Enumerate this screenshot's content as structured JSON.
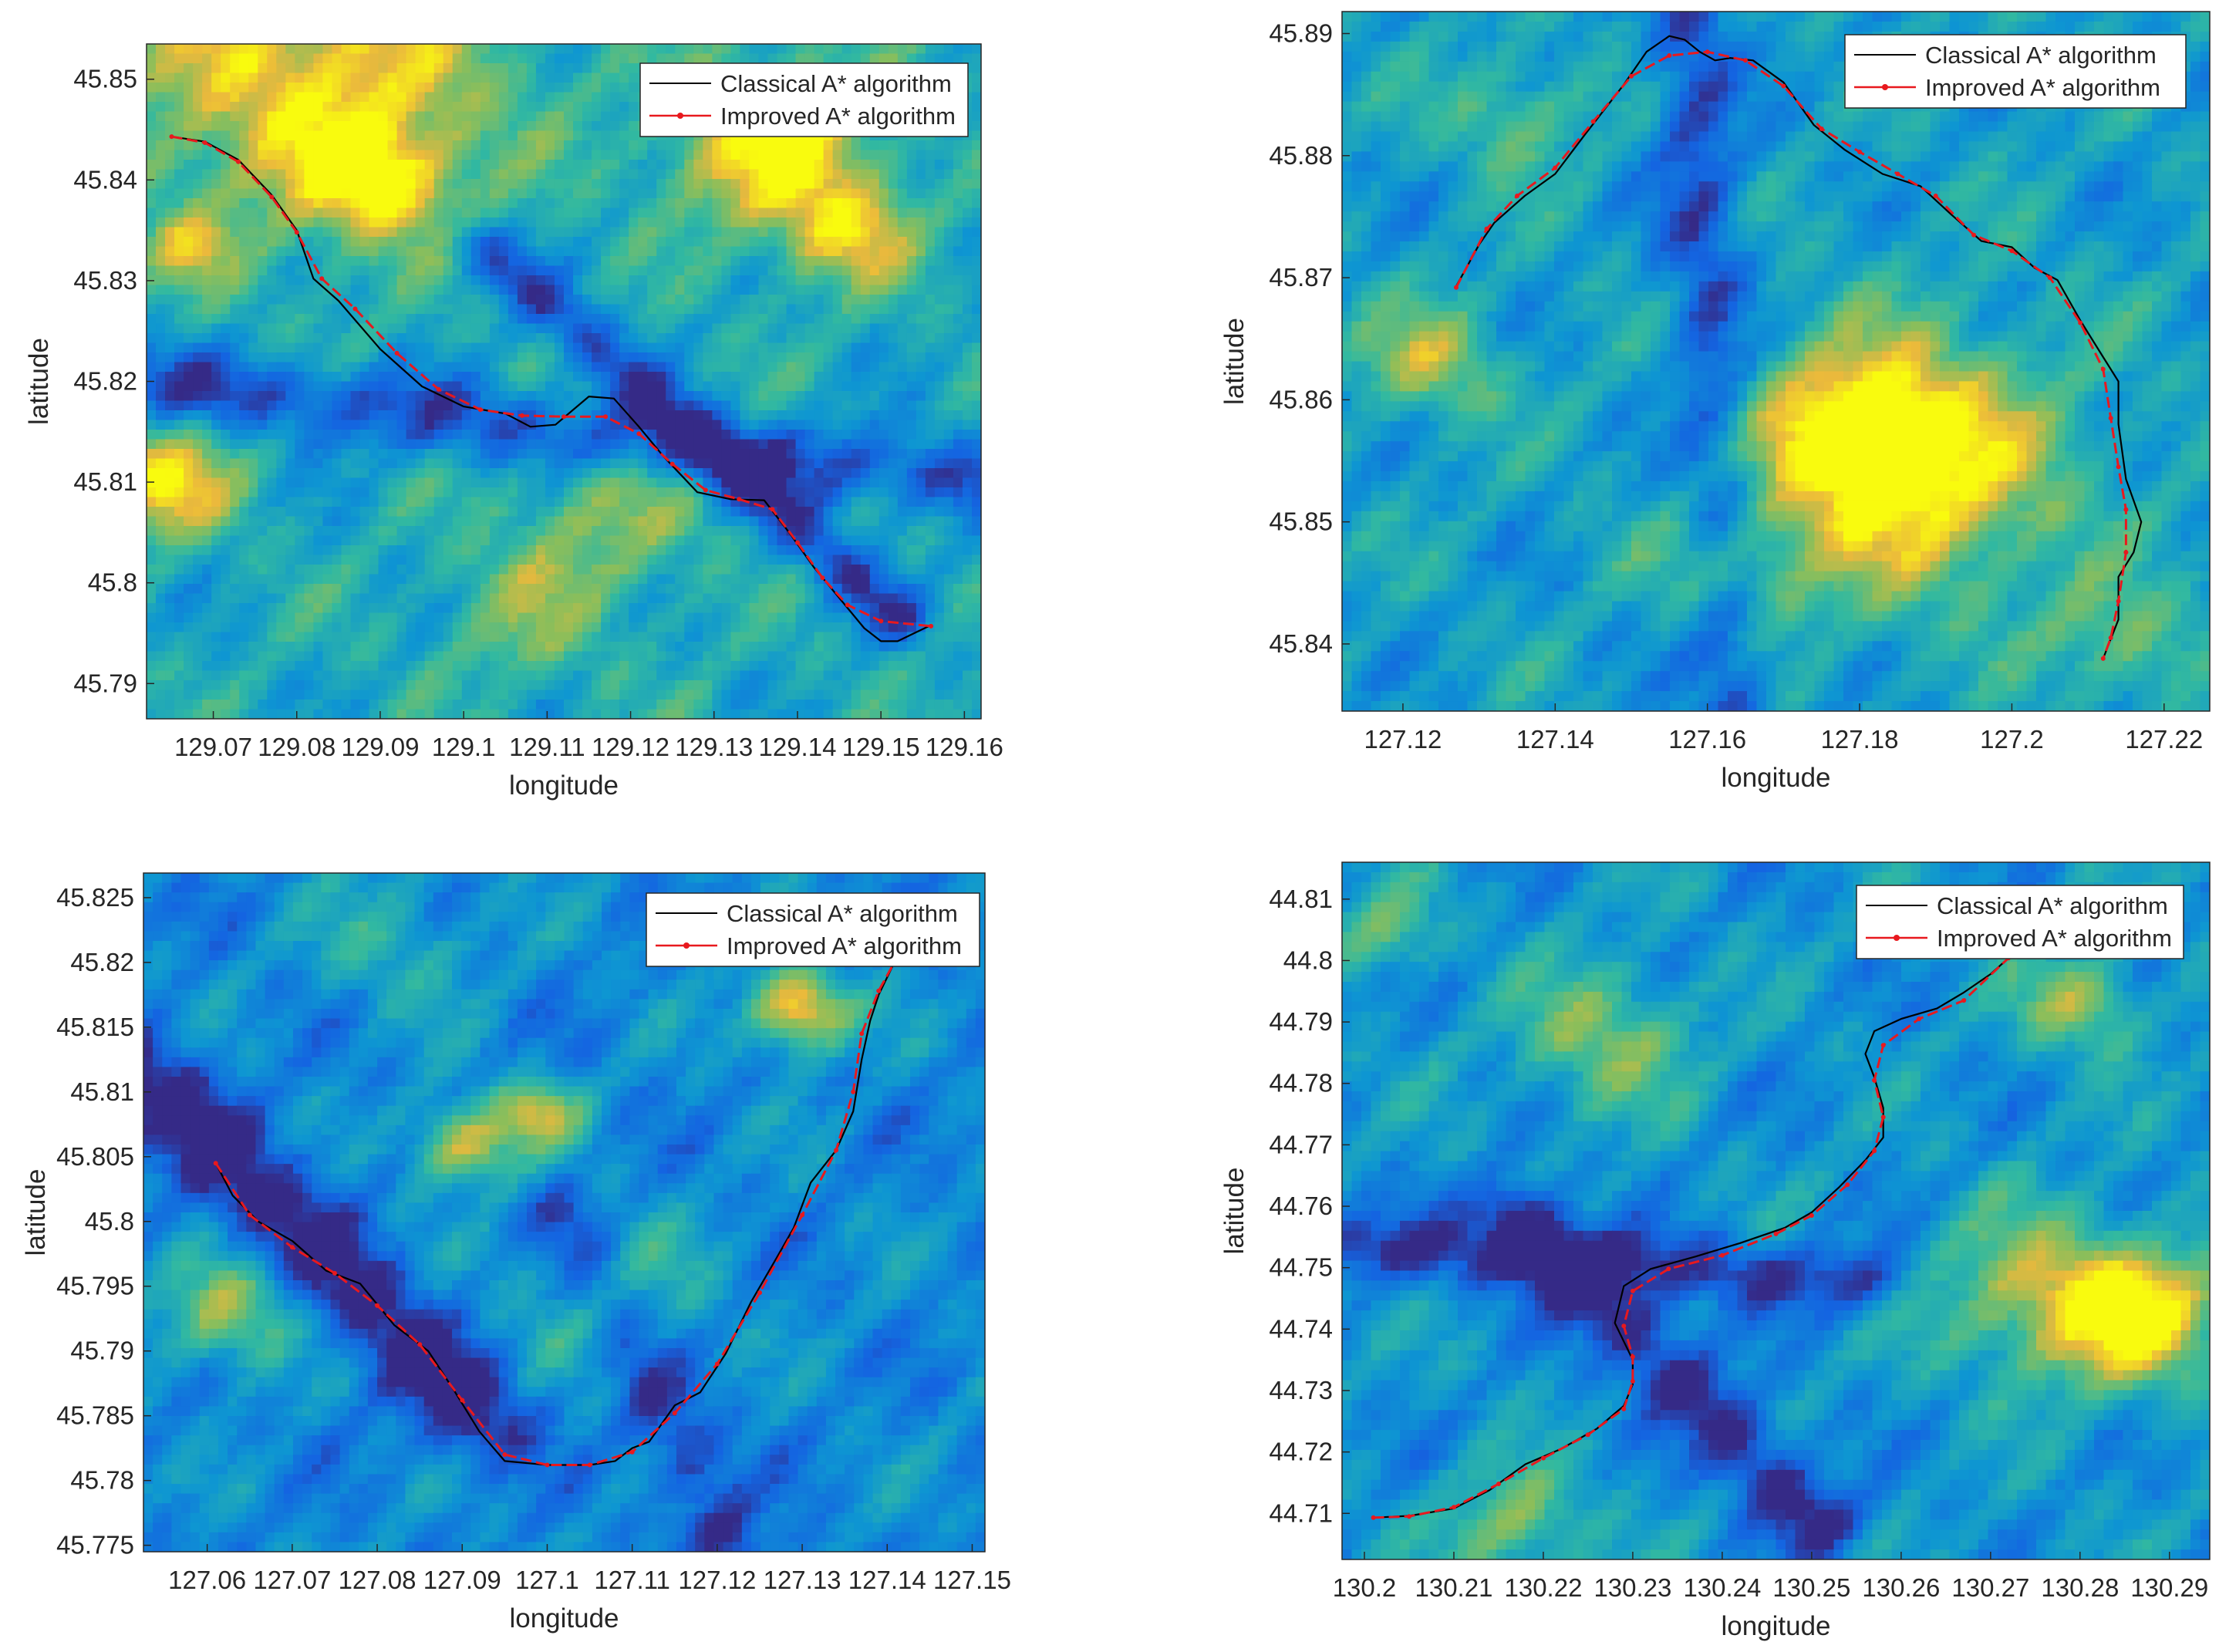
{
  "chart_data": [
    {
      "type": "line",
      "background": "terrain-heatmap",
      "xlabel": "longitude",
      "ylabel": "latitude",
      "xlim": [
        129.062,
        129.162
      ],
      "ylim": [
        45.7865,
        45.8535
      ],
      "xticks": [
        129.07,
        129.08,
        129.09,
        129.1,
        129.11,
        129.12,
        129.13,
        129.14,
        129.15,
        129.16
      ],
      "yticks": [
        45.79,
        45.8,
        45.81,
        45.82,
        45.83,
        45.84,
        45.85
      ],
      "grid": false,
      "legend_position": "top-right",
      "series": [
        {
          "name": "Classical A* algorithm",
          "color": "#000000",
          "points": [
            [
              129.065,
              45.8443
            ],
            [
              129.069,
              45.8438
            ],
            [
              129.073,
              45.842
            ],
            [
              129.077,
              45.8385
            ],
            [
              129.08,
              45.835
            ],
            [
              129.082,
              45.8302
            ],
            [
              129.085,
              45.828
            ],
            [
              129.09,
              45.8232
            ],
            [
              129.095,
              45.8195
            ],
            [
              129.1,
              45.8175
            ],
            [
              129.105,
              45.8168
            ],
            [
              129.108,
              45.8155
            ],
            [
              129.111,
              45.8157
            ],
            [
              129.115,
              45.8185
            ],
            [
              129.118,
              45.8183
            ],
            [
              129.121,
              45.8155
            ],
            [
              129.124,
              45.8125
            ],
            [
              129.128,
              45.809
            ],
            [
              129.132,
              45.8083
            ],
            [
              129.136,
              45.8082
            ],
            [
              129.139,
              45.805
            ],
            [
              129.142,
              45.8015
            ],
            [
              129.145,
              45.7985
            ],
            [
              129.148,
              45.7955
            ],
            [
              129.15,
              45.7942
            ],
            [
              129.152,
              45.7942
            ],
            [
              129.156,
              45.7958
            ]
          ]
        },
        {
          "name": "Improved A* algorithm",
          "color": "#e8191e",
          "points": [
            [
              129.065,
              45.8443
            ],
            [
              129.069,
              45.8437
            ],
            [
              129.073,
              45.8418
            ],
            [
              129.077,
              45.8383
            ],
            [
              129.08,
              45.8348
            ],
            [
              129.083,
              45.8302
            ],
            [
              129.087,
              45.8272
            ],
            [
              129.092,
              45.8228
            ],
            [
              129.097,
              45.8192
            ],
            [
              129.102,
              45.8172
            ],
            [
              129.107,
              45.8166
            ],
            [
              129.112,
              45.8165
            ],
            [
              129.117,
              45.8165
            ],
            [
              129.121,
              45.8148
            ],
            [
              129.125,
              45.8118
            ],
            [
              129.129,
              45.8092
            ],
            [
              129.133,
              45.8083
            ],
            [
              129.137,
              45.8073
            ],
            [
              129.14,
              45.804
            ],
            [
              129.143,
              45.8005
            ],
            [
              129.146,
              45.7978
            ],
            [
              129.15,
              45.7962
            ],
            [
              129.156,
              45.7957
            ]
          ]
        }
      ]
    },
    {
      "type": "line",
      "background": "terrain-heatmap",
      "xlabel": "longitude",
      "ylabel": "latitude",
      "xlim": [
        127.112,
        127.226
      ],
      "ylim": [
        45.8345,
        45.8918
      ],
      "xticks": [
        127.12,
        127.14,
        127.16,
        127.18,
        127.2,
        127.22
      ],
      "yticks": [
        45.84,
        45.85,
        45.86,
        45.87,
        45.88,
        45.89
      ],
      "grid": false,
      "legend_position": "top-right",
      "series": [
        {
          "name": "Classical A* algorithm",
          "color": "#000000",
          "points": [
            [
              127.127,
              45.8693
            ],
            [
              127.13,
              45.8727
            ],
            [
              127.132,
              45.8745
            ],
            [
              127.136,
              45.8767
            ],
            [
              127.14,
              45.8785
            ],
            [
              127.144,
              45.8818
            ],
            [
              127.149,
              45.8858
            ],
            [
              127.152,
              45.8885
            ],
            [
              127.155,
              45.8898
            ],
            [
              127.157,
              45.8895
            ],
            [
              127.159,
              45.8885
            ],
            [
              127.161,
              45.8878
            ],
            [
              127.163,
              45.888
            ],
            [
              127.166,
              45.8878
            ],
            [
              127.17,
              45.886
            ],
            [
              127.174,
              45.8825
            ],
            [
              127.178,
              45.8805
            ],
            [
              127.183,
              45.8785
            ],
            [
              127.188,
              45.8775
            ],
            [
              127.192,
              45.8752
            ],
            [
              127.196,
              45.873
            ],
            [
              127.2,
              45.8725
            ],
            [
              127.203,
              45.8708
            ],
            [
              127.206,
              45.8698
            ],
            [
              127.209,
              45.8665
            ],
            [
              127.212,
              45.8635
            ],
            [
              127.214,
              45.8615
            ],
            [
              127.214,
              45.858
            ],
            [
              127.215,
              45.8535
            ],
            [
              127.217,
              45.85
            ],
            [
              127.216,
              45.8475
            ],
            [
              127.214,
              45.8455
            ],
            [
              127.214,
              45.842
            ],
            [
              127.212,
              45.8388
            ]
          ]
        },
        {
          "name": "Improved A* algorithm",
          "color": "#e8191e",
          "points": [
            [
              127.127,
              45.8692
            ],
            [
              127.131,
              45.874
            ],
            [
              127.135,
              45.8767
            ],
            [
              127.14,
              45.879
            ],
            [
              127.145,
              45.8828
            ],
            [
              127.15,
              45.8865
            ],
            [
              127.155,
              45.8882
            ],
            [
              127.16,
              45.8885
            ],
            [
              127.165,
              45.8878
            ],
            [
              127.17,
              45.8857
            ],
            [
              127.175,
              45.8822
            ],
            [
              127.18,
              45.8803
            ],
            [
              127.185,
              45.8785
            ],
            [
              127.19,
              45.8767
            ],
            [
              127.195,
              45.8735
            ],
            [
              127.2,
              45.8722
            ],
            [
              127.205,
              45.87
            ],
            [
              127.209,
              45.8663
            ],
            [
              127.212,
              45.8625
            ],
            [
              127.213,
              45.8585
            ],
            [
              127.214,
              45.8545
            ],
            [
              127.215,
              45.851
            ],
            [
              127.215,
              45.8475
            ],
            [
              127.214,
              45.8435
            ],
            [
              127.213,
              45.8405
            ],
            [
              127.212,
              45.8388
            ]
          ]
        }
      ]
    },
    {
      "type": "line",
      "background": "terrain-heatmap",
      "xlabel": "longitude",
      "ylabel": "latitude",
      "xlim": [
        127.0525,
        127.1515
      ],
      "ylim": [
        45.7745,
        45.8269
      ],
      "xticks": [
        127.06,
        127.07,
        127.08,
        127.09,
        127.1,
        127.11,
        127.12,
        127.13,
        127.14,
        127.15
      ],
      "yticks": [
        45.775,
        45.78,
        45.785,
        45.79,
        45.795,
        45.8,
        45.805,
        45.81,
        45.815,
        45.82,
        45.825
      ],
      "grid": false,
      "legend_position": "top-right",
      "series": [
        {
          "name": "Classical A* algorithm",
          "color": "#000000",
          "points": [
            [
              127.061,
              45.8045
            ],
            [
              127.063,
              45.802
            ],
            [
              127.066,
              45.8
            ],
            [
              127.07,
              45.7985
            ],
            [
              127.074,
              45.7962
            ],
            [
              127.078,
              45.7952
            ],
            [
              127.082,
              45.792
            ],
            [
              127.086,
              45.79
            ],
            [
              127.089,
              45.787
            ],
            [
              127.092,
              45.7838
            ],
            [
              127.095,
              45.7815
            ],
            [
              127.1,
              45.7812
            ],
            [
              127.105,
              45.7812
            ],
            [
              127.108,
              45.7815
            ],
            [
              127.11,
              45.7825
            ],
            [
              127.112,
              45.783
            ],
            [
              127.115,
              45.7858
            ],
            [
              127.118,
              45.7868
            ],
            [
              127.121,
              45.7898
            ],
            [
              127.124,
              45.7938
            ],
            [
              127.127,
              45.7972
            ],
            [
              127.129,
              45.7995
            ],
            [
              127.131,
              45.803
            ],
            [
              127.134,
              45.8055
            ],
            [
              127.136,
              45.8085
            ],
            [
              127.137,
              45.8125
            ],
            [
              127.138,
              45.8155
            ],
            [
              127.139,
              45.8175
            ],
            [
              127.141,
              45.8202
            ]
          ]
        },
        {
          "name": "Improved A* algorithm",
          "color": "#e8191e",
          "points": [
            [
              127.061,
              45.8045
            ],
            [
              127.065,
              45.8005
            ],
            [
              127.07,
              45.798
            ],
            [
              127.075,
              45.796
            ],
            [
              127.08,
              45.7935
            ],
            [
              127.085,
              45.7905
            ],
            [
              127.09,
              45.7862
            ],
            [
              127.095,
              45.782
            ],
            [
              127.1,
              45.7812
            ],
            [
              127.105,
              45.7812
            ],
            [
              127.11,
              45.7822
            ],
            [
              127.115,
              45.7852
            ],
            [
              127.12,
              45.789
            ],
            [
              127.125,
              45.7945
            ],
            [
              127.13,
              45.8005
            ],
            [
              127.134,
              45.8055
            ],
            [
              127.136,
              45.81
            ],
            [
              127.137,
              45.8145
            ],
            [
              127.139,
              45.8178
            ],
            [
              127.141,
              45.8202
            ]
          ]
        }
      ]
    },
    {
      "type": "line",
      "background": "terrain-heatmap",
      "xlabel": "longitude",
      "ylabel": "latitude",
      "xlim": [
        130.1975,
        130.2945
      ],
      "ylim": [
        44.7025,
        44.816
      ],
      "xticks": [
        130.2,
        130.21,
        130.22,
        130.23,
        130.24,
        130.25,
        130.26,
        130.27,
        130.28,
        130.29
      ],
      "yticks": [
        44.71,
        44.72,
        44.73,
        44.74,
        44.75,
        44.76,
        44.77,
        44.78,
        44.79,
        44.8,
        44.81
      ],
      "grid": false,
      "legend_position": "top-right",
      "series": [
        {
          "name": "Classical A* algorithm",
          "color": "#000000",
          "points": [
            [
              130.201,
              44.7093
            ],
            [
              130.205,
              44.7096
            ],
            [
              130.21,
              44.7108
            ],
            [
              130.214,
              44.7138
            ],
            [
              130.218,
              44.718
            ],
            [
              130.222,
              44.7205
            ],
            [
              130.226,
              44.7238
            ],
            [
              130.229,
              44.7275
            ],
            [
              130.23,
              44.731
            ],
            [
              130.23,
              44.735
            ],
            [
              130.229,
              44.738
            ],
            [
              130.228,
              44.741
            ],
            [
              130.229,
              44.747
            ],
            [
              130.232,
              44.7498
            ],
            [
              130.237,
              44.7518
            ],
            [
              130.242,
              44.754
            ],
            [
              130.247,
              44.7565
            ],
            [
              130.25,
              44.759
            ],
            [
              130.253,
              44.763
            ],
            [
              130.256,
              44.7675
            ],
            [
              130.258,
              44.7712
            ],
            [
              130.258,
              44.776
            ],
            [
              130.257,
              44.781
            ],
            [
              130.256,
              44.7848
            ],
            [
              130.257,
              44.7885
            ],
            [
              130.26,
              44.7905
            ],
            [
              130.264,
              44.7922
            ],
            [
              130.267,
              44.7948
            ],
            [
              130.27,
              44.7978
            ],
            [
              130.272,
              44.8004
            ]
          ]
        },
        {
          "name": "Improved A* algorithm",
          "color": "#e8191e",
          "points": [
            [
              130.201,
              44.7093
            ],
            [
              130.205,
              44.7095
            ],
            [
              130.21,
              44.711
            ],
            [
              130.215,
              44.7148
            ],
            [
              130.22,
              44.719
            ],
            [
              130.225,
              44.7228
            ],
            [
              130.229,
              44.727
            ],
            [
              130.23,
              44.7315
            ],
            [
              130.23,
              44.7355
            ],
            [
              130.229,
              44.7405
            ],
            [
              130.23,
              44.7462
            ],
            [
              130.234,
              44.7498
            ],
            [
              130.24,
              44.752
            ],
            [
              130.246,
              44.7555
            ],
            [
              130.25,
              44.7585
            ],
            [
              130.254,
              44.7635
            ],
            [
              130.257,
              44.769
            ],
            [
              130.258,
              44.7745
            ],
            [
              130.257,
              44.7805
            ],
            [
              130.258,
              44.7862
            ],
            [
              130.262,
              44.7905
            ],
            [
              130.267,
              44.7935
            ],
            [
              130.272,
              44.8004
            ]
          ]
        }
      ]
    }
  ]
}
